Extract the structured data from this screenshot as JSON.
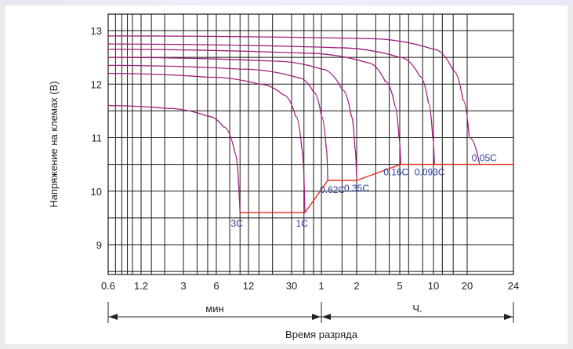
{
  "chart_data": {
    "type": "line",
    "title": "",
    "ylabel": "Напряжение на клемах (В)",
    "xlabel": "Время разряда",
    "xscale": "log",
    "xlim_minutes": [
      0.6,
      1440
    ],
    "ylim": [
      8.5,
      13.3
    ],
    "grid": true,
    "y_ticks": [
      9,
      10,
      11,
      12,
      13
    ],
    "x_ticks": [
      {
        "label": "0.6",
        "minutes": 0.6
      },
      {
        "label": "1.2",
        "minutes": 1.2
      },
      {
        "label": "3",
        "minutes": 3
      },
      {
        "label": "6",
        "minutes": 6
      },
      {
        "label": "12",
        "minutes": 12
      },
      {
        "label": "30",
        "minutes": 30
      },
      {
        "label": "1",
        "minutes": 60
      },
      {
        "label": "2",
        "minutes": 120
      },
      {
        "label": "5",
        "minutes": 300
      },
      {
        "label": "10",
        "minutes": 600
      },
      {
        "label": "20",
        "minutes": 1200
      },
      {
        "label": "24",
        "minutes": 1440
      }
    ],
    "unit_labels": {
      "minutes": "мин",
      "hours": "Ч."
    },
    "colors": {
      "curve": "#a0207f",
      "cutoff": "#e8291c",
      "label": "#2a3e9a",
      "grid": "#1a1a1a"
    },
    "series": [
      {
        "name": "3C",
        "plateau": 11.6,
        "end_minutes": 10,
        "cutoff": 9.6,
        "points": [
          [
            0.6,
            11.6
          ],
          [
            2,
            11.55
          ],
          [
            5,
            11.4
          ],
          [
            7,
            11.2
          ],
          [
            9,
            10.7
          ],
          [
            10,
            9.6
          ]
        ]
      },
      {
        "name": "1C",
        "plateau": 12.2,
        "end_minutes": 41,
        "cutoff": 9.6,
        "points": [
          [
            0.6,
            12.2
          ],
          [
            5,
            12.13
          ],
          [
            15,
            12.0
          ],
          [
            25,
            11.8
          ],
          [
            33,
            11.4
          ],
          [
            38,
            10.8
          ],
          [
            41,
            9.6
          ]
        ]
      },
      {
        "name": "0.62C",
        "plateau": 12.35,
        "end_minutes": 68,
        "cutoff": 10.2,
        "points": [
          [
            0.6,
            12.35
          ],
          [
            10,
            12.28
          ],
          [
            35,
            12.12
          ],
          [
            50,
            11.85
          ],
          [
            60,
            11.4
          ],
          [
            66,
            10.8
          ],
          [
            68,
            10.2
          ]
        ]
      },
      {
        "name": "0.35C",
        "plateau": 12.5,
        "end_minutes": 120,
        "cutoff": 10.2,
        "points": [
          [
            0.6,
            12.5
          ],
          [
            20,
            12.43
          ],
          [
            60,
            12.28
          ],
          [
            90,
            11.9
          ],
          [
            108,
            11.4
          ],
          [
            116,
            10.8
          ],
          [
            120,
            10.2
          ]
        ]
      },
      {
        "name": "0.16C",
        "plateau": 12.65,
        "end_minutes": 306,
        "cutoff": 10.5,
        "points": [
          [
            0.6,
            12.65
          ],
          [
            40,
            12.58
          ],
          [
            150,
            12.4
          ],
          [
            220,
            12.05
          ],
          [
            270,
            11.6
          ],
          [
            295,
            11.0
          ],
          [
            306,
            10.5
          ]
        ]
      },
      {
        "name": "0.093C",
        "plateau": 12.75,
        "end_minutes": 612,
        "cutoff": 10.5,
        "points": [
          [
            0.6,
            12.75
          ],
          [
            80,
            12.68
          ],
          [
            300,
            12.5
          ],
          [
            450,
            12.15
          ],
          [
            540,
            11.65
          ],
          [
            590,
            11.0
          ],
          [
            612,
            10.5
          ]
        ]
      },
      {
        "name": "0.05C",
        "plateau": 12.9,
        "end_minutes": 1260,
        "cutoff": 10.5,
        "points": [
          [
            0.6,
            12.9
          ],
          [
            150,
            12.85
          ],
          [
            600,
            12.65
          ],
          [
            900,
            12.25
          ],
          [
            1100,
            11.7
          ],
          [
            1210,
            11.0
          ],
          [
            1260,
            10.5
          ]
        ]
      }
    ],
    "cutoff_line": [
      [
        10,
        9.6
      ],
      [
        41,
        9.6
      ],
      [
        68,
        10.2
      ],
      [
        120,
        10.2
      ],
      [
        306,
        10.5
      ],
      [
        1260,
        10.5
      ],
      [
        1440,
        10.5
      ]
    ]
  }
}
